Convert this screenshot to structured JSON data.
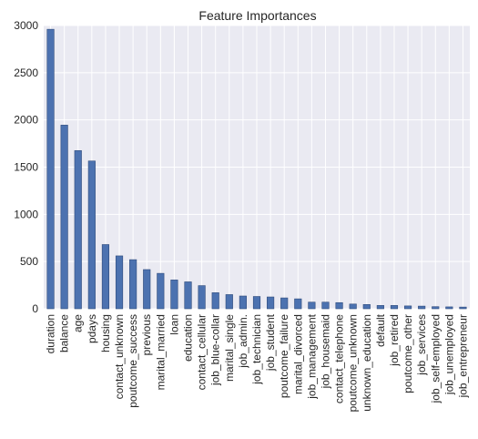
{
  "chart_data": {
    "type": "bar",
    "title": "Feature Importances",
    "xlabel": "",
    "ylabel": "",
    "ylim": [
      0,
      3000
    ],
    "yticks": [
      0,
      500,
      1000,
      1500,
      2000,
      2500,
      3000
    ],
    "grid": true,
    "colors": {
      "bar": "#4c72b0",
      "bar_edge": "#2e4a7a",
      "plot_bg": "#eaeaf2",
      "grid": "#ffffff",
      "text": "#262626"
    },
    "categories": [
      "duration",
      "balance",
      "age",
      "pdays",
      "housing",
      "contact_unknown",
      "poutcome_success",
      "previous",
      "marital_married",
      "loan",
      "education",
      "contact_cellular",
      "job_blue-collar",
      "marital_single",
      "job_admin.",
      "job_technician",
      "job_student",
      "poutcome_failure",
      "marital_divorced",
      "job_management",
      "job_housemaid",
      "contact_telephone",
      "poutcome_unknown",
      "unknown_education",
      "default",
      "job_retired",
      "poutcome_other",
      "job_services",
      "job_self-employed",
      "job_unemployed",
      "job_entrepreneur"
    ],
    "values": [
      2960,
      1945,
      1675,
      1565,
      680,
      560,
      520,
      415,
      375,
      305,
      285,
      245,
      170,
      150,
      135,
      130,
      125,
      115,
      105,
      70,
      70,
      65,
      50,
      45,
      35,
      35,
      30,
      28,
      22,
      20,
      18
    ]
  }
}
